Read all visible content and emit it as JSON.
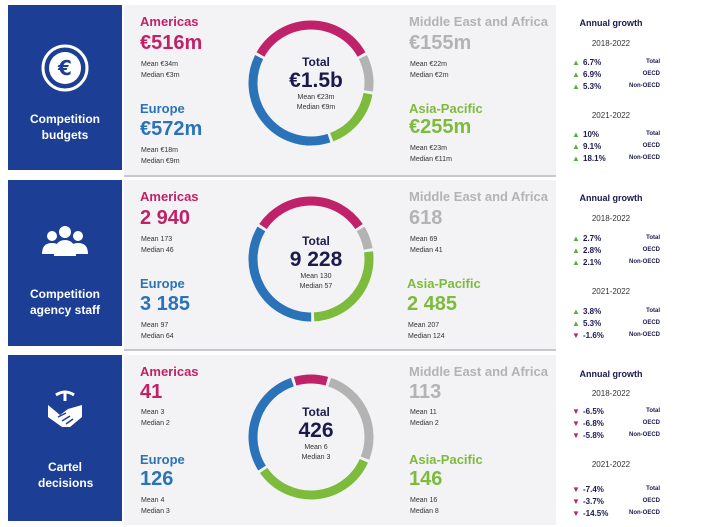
{
  "colors": {
    "americas": "#c0226a",
    "europe": "#2a73b8",
    "middle_east_africa": "#b3b3b3",
    "asia_pacific": "#7dbb3c",
    "sidebar": "#1c3f95",
    "up": "#5cae3c",
    "down": "#c0226a"
  },
  "sections": [
    {
      "title": "Competition budgets",
      "icon": "euro-icon",
      "americas": {
        "label": "Americas",
        "value": "€516m",
        "mean": "Mean €34m",
        "median": "Median €3m"
      },
      "europe": {
        "label": "Europe",
        "value": "€572m",
        "mean": "Mean €18m",
        "median": "Median €9m"
      },
      "mea": {
        "label": "Middle East and Africa",
        "value": "€155m",
        "mean": "Mean €22m",
        "median": "Median €2m"
      },
      "apac": {
        "label": "Asia-Pacific",
        "value": "€255m",
        "mean": "Mean €23m",
        "median": "Median €11m"
      },
      "total": {
        "label": "Total",
        "value": "€1.5b",
        "mean": "Mean €23m",
        "median": "Median €9m"
      },
      "shares": [
        516,
        155,
        255,
        572
      ],
      "growth": {
        "title": "Annual growth",
        "period1": "2018-2022",
        "rows1": [
          {
            "dir": "up",
            "val": "6.7%",
            "grp": "Total"
          },
          {
            "dir": "up",
            "val": "6.9%",
            "grp": "OECD"
          },
          {
            "dir": "up",
            "val": "5.3%",
            "grp": "Non-OECD"
          }
        ],
        "period2": "2021-2022",
        "rows2": [
          {
            "dir": "up",
            "val": "10%",
            "grp": "Total"
          },
          {
            "dir": "up",
            "val": "9.1%",
            "grp": "OECD"
          },
          {
            "dir": "up",
            "val": "18.1%",
            "grp": "Non-OECD"
          }
        ]
      }
    },
    {
      "title": "Competition agency staff",
      "icon": "people-icon",
      "americas": {
        "label": "Americas",
        "value": "2 940",
        "mean": "Mean 173",
        "median": "Median 46"
      },
      "europe": {
        "label": "Europe",
        "value": "3 185",
        "mean": "Mean 97",
        "median": "Median 64"
      },
      "mea": {
        "label": "Middle East and Africa",
        "value": "618",
        "mean": "Mean 69",
        "median": "Median 41"
      },
      "apac": {
        "label": "Asia-Pacific",
        "value": "2 485",
        "mean": "Mean 207",
        "median": "Median 124"
      },
      "total": {
        "label": "Total",
        "value": "9 228",
        "mean": "Mean 130",
        "median": "Median 57"
      },
      "shares": [
        2940,
        618,
        2485,
        3185
      ],
      "growth": {
        "title": "Annual growth",
        "period1": "2018-2022",
        "rows1": [
          {
            "dir": "up",
            "val": "2.7%",
            "grp": "Total"
          },
          {
            "dir": "up",
            "val": "2.8%",
            "grp": "OECD"
          },
          {
            "dir": "up",
            "val": "2.1%",
            "grp": "Non-OECD"
          }
        ],
        "period2": "2021-2022",
        "rows2": [
          {
            "dir": "up",
            "val": "3.8%",
            "grp": "Total"
          },
          {
            "dir": "up",
            "val": "5.3%",
            "grp": "OECD"
          },
          {
            "dir": "down",
            "val": "-1.6%",
            "grp": "Non-OECD"
          }
        ]
      }
    },
    {
      "title": "Cartel decisions",
      "icon": "handshake-icon",
      "americas": {
        "label": "Americas",
        "value": "41",
        "mean": "Mean 3",
        "median": "Median 2"
      },
      "europe": {
        "label": "Europe",
        "value": "126",
        "mean": "Mean 4",
        "median": "Median 3"
      },
      "mea": {
        "label": "Middle East and Africa",
        "value": "113",
        "mean": "Mean 11",
        "median": "Median 2"
      },
      "apac": {
        "label": "Asia-Pacific",
        "value": "146",
        "mean": "Mean 16",
        "median": "Median 8"
      },
      "total": {
        "label": "Total",
        "value": "426",
        "mean": "Mean 6",
        "median": "Median 3"
      },
      "shares": [
        41,
        113,
        146,
        126
      ],
      "growth": {
        "title": "Annual growth",
        "period1": "2018-2022",
        "rows1": [
          {
            "dir": "down",
            "val": "-6.5%",
            "grp": "Total"
          },
          {
            "dir": "down",
            "val": "-6.8%",
            "grp": "OECD"
          },
          {
            "dir": "down",
            "val": "-5.8%",
            "grp": "Non-OECD"
          }
        ],
        "period2": "2021-2022",
        "rows2": [
          {
            "dir": "down",
            "val": "-7.4%",
            "grp": "Total"
          },
          {
            "dir": "down",
            "val": "-3.7%",
            "grp": "OECD"
          },
          {
            "dir": "down",
            "val": "-14.5%",
            "grp": "Non-OECD"
          }
        ]
      }
    }
  ]
}
